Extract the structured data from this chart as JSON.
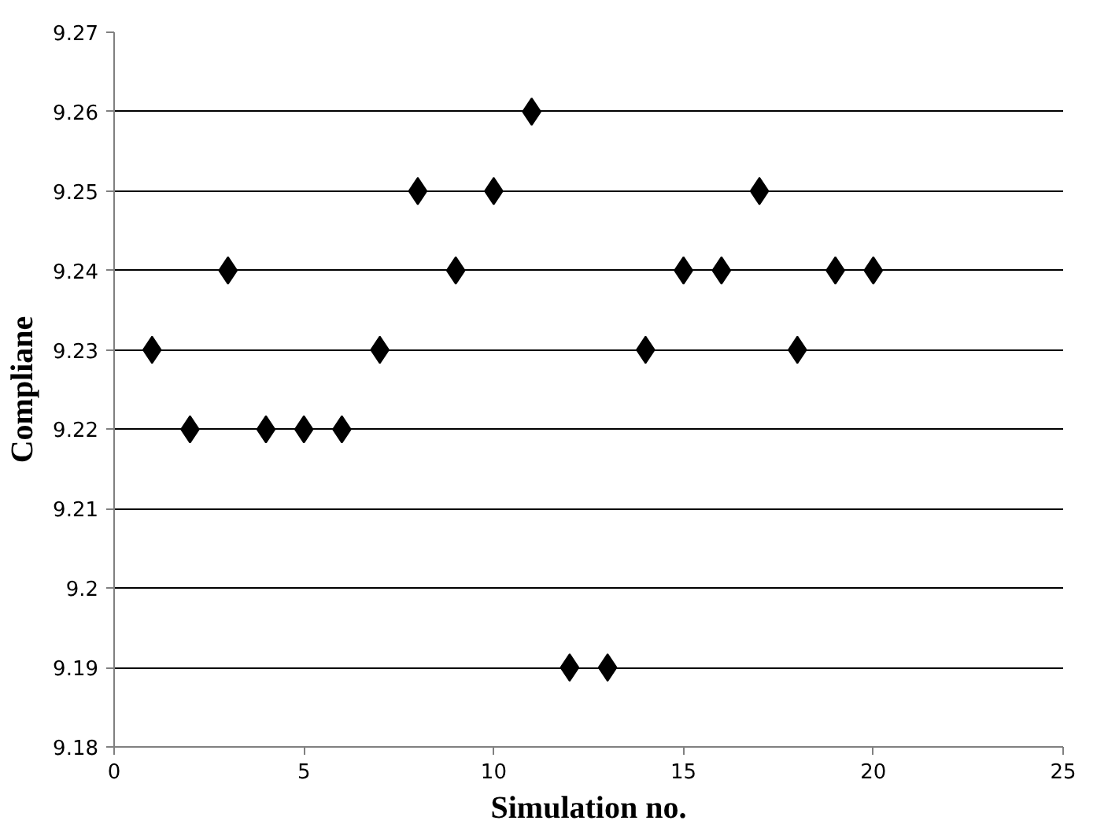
{
  "chart_data": {
    "type": "scatter",
    "xlabel": "Simulation no.",
    "ylabel": "Compliane",
    "x": [
      1,
      2,
      3,
      4,
      5,
      6,
      7,
      8,
      9,
      10,
      11,
      12,
      13,
      14,
      15,
      16,
      17,
      18,
      19,
      20
    ],
    "series": [
      {
        "color": "#000000",
        "values": [
          9.23,
          9.22,
          9.24,
          9.22,
          9.22,
          9.22,
          9.23,
          9.25,
          9.24,
          9.25,
          9.26,
          9.19,
          9.19,
          9.23,
          9.24,
          9.24,
          9.25,
          9.23,
          9.24,
          9.24
        ]
      }
    ],
    "xlim": [
      0,
      25
    ],
    "xticks": [
      0,
      5,
      10,
      15,
      20,
      25
    ],
    "ylim": [
      9.18,
      9.27
    ],
    "yticks": [
      9.18,
      9.19,
      9.2,
      9.21,
      9.22,
      9.23,
      9.24,
      9.25,
      9.26,
      9.27
    ],
    "grid": "y",
    "marker": "diamond"
  }
}
